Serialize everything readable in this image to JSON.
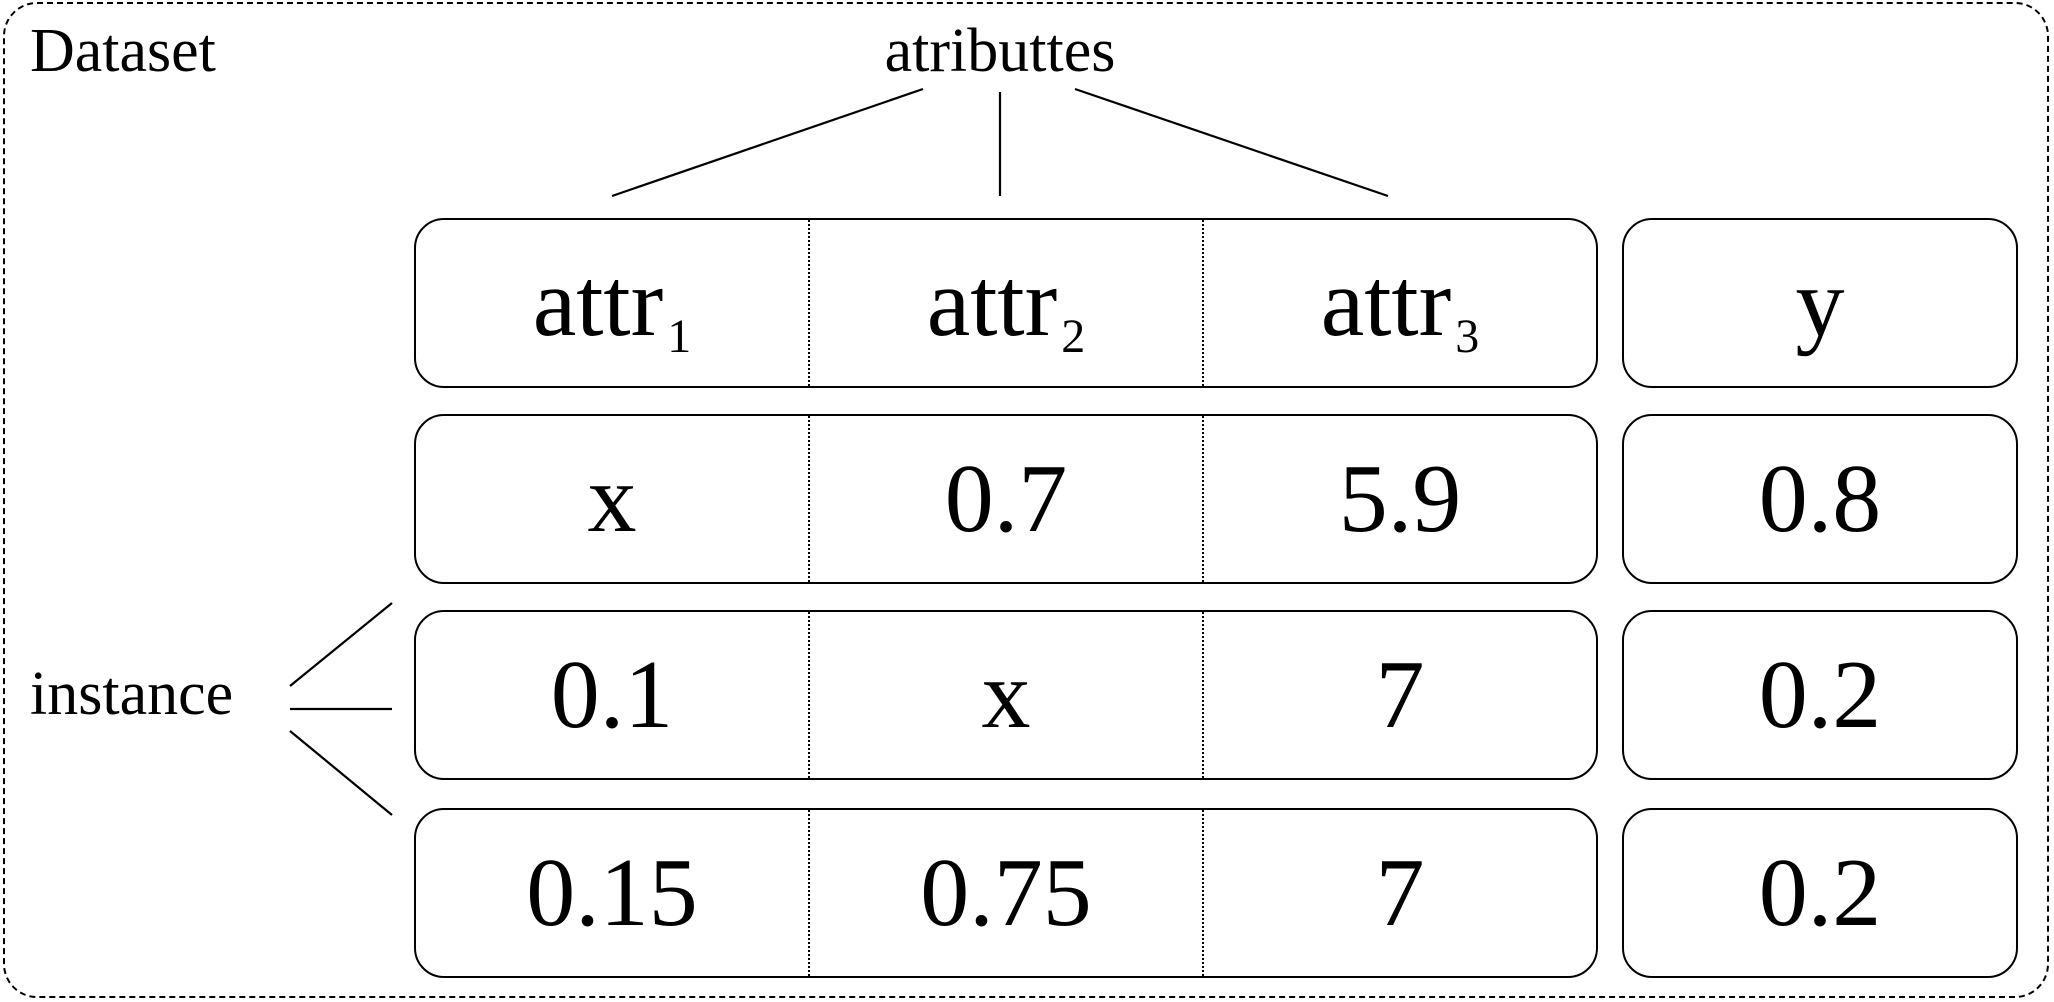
{
  "title": "Dataset",
  "attributes_label": "atributtes",
  "instance_label": "instance",
  "header": {
    "attributes": [
      {
        "name": "attr",
        "index": "1"
      },
      {
        "name": "attr",
        "index": "2"
      },
      {
        "name": "attr",
        "index": "3"
      }
    ],
    "target": "y"
  },
  "rows": [
    {
      "values": [
        "x",
        "0.7",
        "5.9"
      ],
      "target": "0.8"
    },
    {
      "values": [
        "0.1",
        "x",
        "7"
      ],
      "target": "0.2"
    },
    {
      "values": [
        "0.15",
        "0.75",
        "7"
      ],
      "target": "0.2"
    }
  ]
}
